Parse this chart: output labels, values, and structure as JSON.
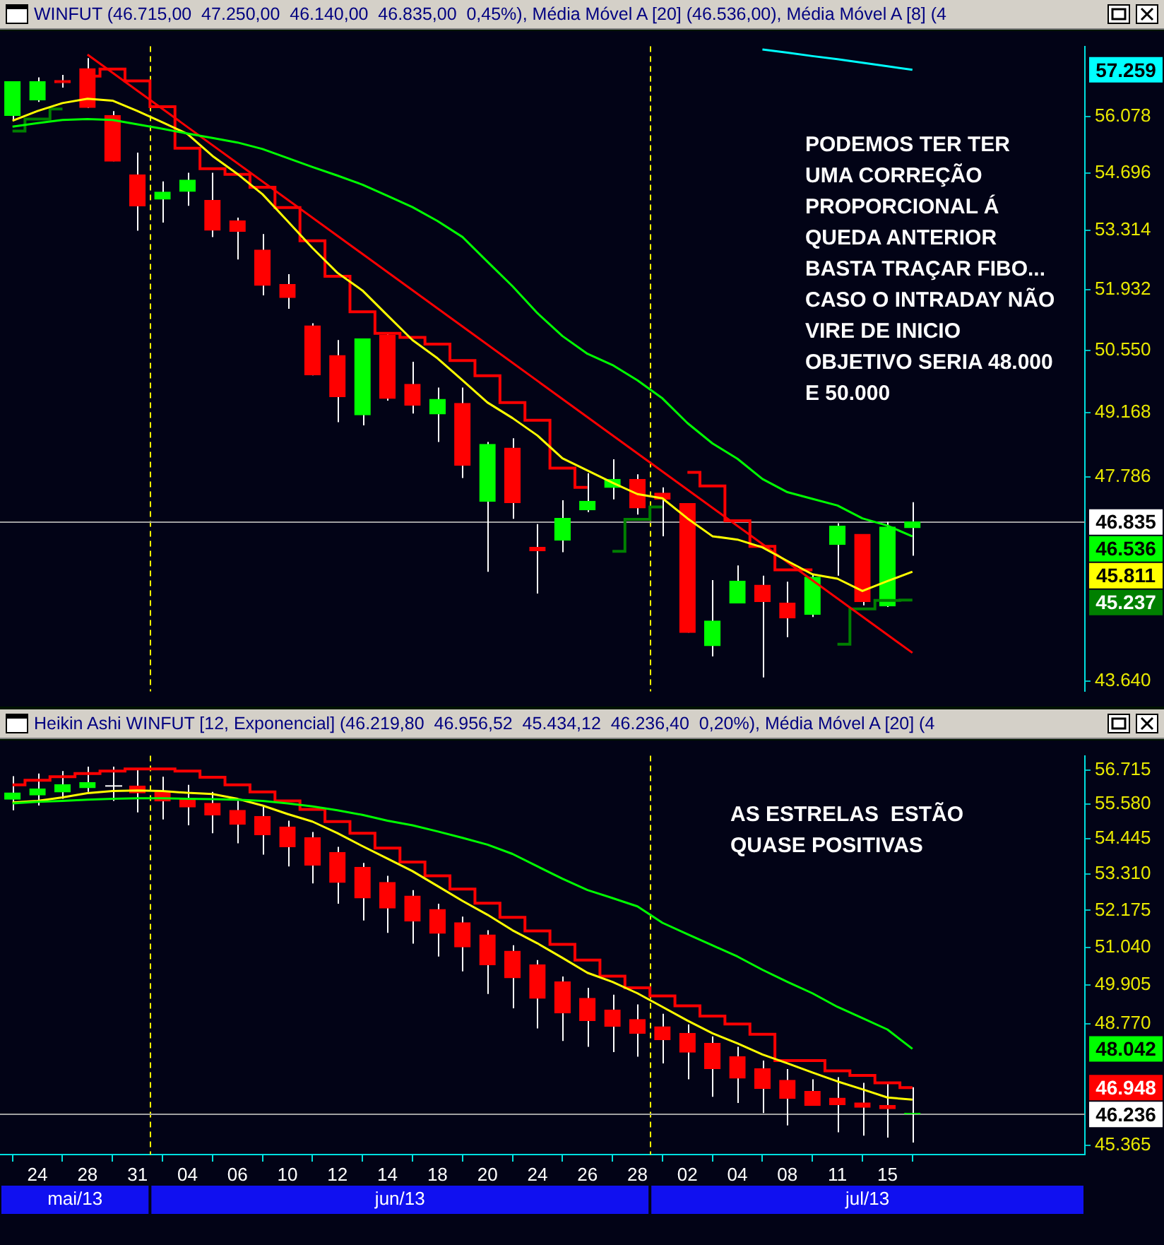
{
  "chart_data": [
    {
      "type": "candlestick",
      "title": "WINFUT (46.715,00  47.250,00  46.140,00  46.835,00  0,45%), Média Móvel A [20] (46.536,00), Média Móvel A [8] (4",
      "categories": [
        null,
        null,
        null,
        null,
        null,
        null,
        null,
        null,
        null,
        null,
        null,
        null,
        null,
        null,
        null,
        null,
        null,
        null,
        null,
        null,
        null,
        null,
        null,
        null,
        null,
        null,
        null,
        null,
        null,
        null,
        null,
        null,
        null,
        null,
        null,
        null,
        null
      ],
      "tick_labels": "y",
      "log": true,
      "ylim": [
        43440,
        57860
      ],
      "yticks": [
        {
          "value": 43640,
          "label": "43.640"
        },
        {
          "value": 47786,
          "label": "47.786"
        },
        {
          "value": 49168,
          "label": "49.168"
        },
        {
          "value": 50550,
          "label": "50.550"
        },
        {
          "value": 51932,
          "label": "51.932"
        },
        {
          "value": 53314,
          "label": "53.314"
        },
        {
          "value": 54696,
          "label": "54.696"
        },
        {
          "value": 56078,
          "label": "56.078"
        }
      ],
      "series": [
        {
          "type": "candlestick",
          "ohlc": [
            [
              56110,
              56960,
              56000,
              56960
            ],
            [
              56500,
              57070,
              56450,
              56960
            ],
            [
              56990,
              57130,
              56810,
              56930
            ],
            [
              57290,
              57560,
              56300,
              56310
            ],
            [
              56110,
              56220,
              54980,
              54980
            ],
            [
              54650,
              55190,
              53310,
              53900
            ],
            [
              54060,
              54490,
              53500,
              54230
            ],
            [
              54250,
              54700,
              53900,
              54520
            ],
            [
              54030,
              54700,
              53160,
              53320
            ],
            [
              53540,
              53620,
              52630,
              53290
            ],
            [
              52850,
              53230,
              51800,
              52030
            ],
            [
              52050,
              52290,
              51490,
              51750
            ],
            [
              51100,
              51160,
              49990,
              50000
            ],
            [
              50430,
              50780,
              48960,
              49520
            ],
            [
              49120,
              50810,
              48890,
              50810
            ],
            [
              50890,
              50930,
              49430,
              49480
            ],
            [
              49790,
              50290,
              49150,
              49330
            ],
            [
              49140,
              49720,
              48530,
              49460
            ],
            [
              49370,
              49720,
              47760,
              48030
            ],
            [
              47270,
              48530,
              45810,
              48480
            ],
            [
              48400,
              48610,
              46900,
              47240
            ],
            [
              46310,
              46790,
              45370,
              46240
            ],
            [
              46460,
              47290,
              46210,
              46910
            ],
            [
              47090,
              47860,
              47040,
              47270
            ],
            [
              47560,
              48160,
              47310,
              47730
            ],
            [
              47730,
              47840,
              46990,
              47130
            ],
            [
              47440,
              47560,
              46540,
              47310
            ],
            [
              47220,
              47220,
              44590,
              44590
            ],
            [
              44330,
              45640,
              44120,
              44820
            ],
            [
              45180,
              45940,
              45180,
              45620
            ],
            [
              45540,
              45730,
              43710,
              45210
            ],
            [
              45180,
              45610,
              44500,
              44880
            ],
            [
              44950,
              45760,
              44900,
              45700
            ],
            [
              46370,
              46810,
              45730,
              46750
            ],
            [
              46580,
              46580,
              45130,
              45210
            ],
            [
              45120,
              46840,
              45100,
              46730
            ],
            [
              46715,
              47250,
              46140,
              46835
            ]
          ],
          "colors": [
            "#00ff00",
            "#00ff00",
            "#ff0000",
            "#ff0000",
            "#ff0000",
            "#ff0000",
            "#00ff00",
            "#00ff00",
            "#ff0000",
            "#ff0000",
            "#ff0000",
            "#ff0000",
            "#ff0000",
            "#ff0000",
            "#00ff00",
            "#ff0000",
            "#ff0000",
            "#00ff00",
            "#ff0000",
            "#00ff00",
            "#ff0000",
            "#ff0000",
            "#00ff00",
            "#00ff00",
            "#00ff00",
            "#ff0000",
            "#ff0000",
            "#ff0000",
            "#00ff00",
            "#00ff00",
            "#ff0000",
            "#ff0000",
            "#00ff00",
            "#00ff00",
            "#ff0000",
            "#00ff00",
            "#00ff00"
          ]
        },
        {
          "type": "line",
          "color": "#00ff00",
          "values": [
            55830,
            55920,
            56000,
            56020,
            56000,
            55890,
            55780,
            55660,
            55550,
            55440,
            55280,
            55060,
            54840,
            54630,
            54410,
            54140,
            53870,
            53540,
            53160,
            52580,
            52010,
            51390,
            50870,
            50470,
            50220,
            49880,
            49480,
            48940,
            48500,
            48170,
            47740,
            47460,
            47320,
            47180,
            46910,
            46760,
            46536
          ]
        },
        {
          "type": "line",
          "color": "#ffff00",
          "values": [
            55980,
            56220,
            56420,
            56530,
            56480,
            56220,
            55940,
            55650,
            55110,
            54670,
            54180,
            53540,
            52900,
            52320,
            51910,
            51340,
            50780,
            50370,
            49880,
            49390,
            49050,
            48670,
            48180,
            47920,
            47660,
            47420,
            47330,
            46910,
            46540,
            46470,
            46310,
            46030,
            45760,
            45670,
            45420,
            45620,
            45811
          ]
        },
        {
          "type": "step",
          "color": "#ff0000",
          "values": [
            null,
            null,
            null,
            57100,
            57280,
            56980,
            56330,
            55300,
            54800,
            54660,
            54350,
            53860,
            53070,
            52240,
            51420,
            50930,
            50840,
            50690,
            50320,
            49980,
            49390,
            49000,
            47970,
            47560,
            null,
            null,
            null,
            47880,
            47590,
            46860,
            46330,
            45850,
            45850,
            null,
            null,
            null,
            null
          ]
        },
        {
          "type": "step",
          "color": "#008000",
          "values": [
            55720,
            56020,
            56270,
            null,
            null,
            null,
            null,
            null,
            null,
            null,
            null,
            null,
            null,
            null,
            null,
            null,
            null,
            null,
            null,
            null,
            null,
            null,
            null,
            null,
            46230,
            46890,
            47150,
            null,
            null,
            null,
            null,
            null,
            null,
            44360,
            45060,
            45230,
            45237
          ]
        },
        {
          "type": "line",
          "color": "#ff0000",
          "values": [
            null,
            null,
            null,
            57650,
            null,
            null,
            null,
            null,
            null,
            null,
            null,
            null,
            null,
            null,
            null,
            null,
            null,
            null,
            null,
            null,
            null,
            null,
            null,
            null,
            null,
            null,
            null,
            null,
            null,
            null,
            null,
            null,
            null,
            null,
            null,
            null,
            44190
          ]
        },
        {
          "type": "line",
          "color": "#00ffff",
          "values": [
            null,
            null,
            null,
            null,
            null,
            null,
            null,
            null,
            null,
            null,
            null,
            null,
            null,
            null,
            null,
            null,
            null,
            null,
            null,
            null,
            null,
            null,
            null,
            null,
            null,
            null,
            null,
            null,
            null,
            null,
            57780,
            57700,
            57610,
            57530,
            57440,
            57350,
            57259
          ]
        }
      ],
      "ref_lines": [
        {
          "axis": "y",
          "value": 46835,
          "label": "46.835",
          "color": "#a0a0a0"
        }
      ],
      "annotations": [
        "PODEMOS TER TER\nUMA CORREÇÃO\nPROPORCIONAL Á\nQUEDA ANTERIOR\nBASTA TRAÇAR FIBO...\nCASO O INTRADAY NÃO\nVIRE DE INICIO\nOBJETIVO SERIA 48.000\nE 50.000",
        "57.259",
        "46.536",
        "45.811",
        "45.237"
      ]
    },
    {
      "type": "candlestick",
      "title": "Heikin Ashi WINFUT [12, Exponencial] (46.219,80  46.956,52  45.434,12  46.236,40  0,20%), Média Móvel A [20] (4",
      "categories": [
        null,
        "24",
        null,
        "28",
        null,
        "31",
        null,
        "04",
        null,
        "06",
        null,
        "10",
        null,
        "12",
        null,
        "14",
        null,
        "18",
        null,
        "20",
        null,
        "24",
        null,
        "26",
        null,
        "28",
        null,
        "02",
        null,
        "04",
        null,
        "08",
        null,
        "11",
        null,
        "15",
        null
      ],
      "log": true,
      "ylim": [
        45110,
        57210
      ],
      "yticks": [
        {
          "value": 45365,
          "label": "45.365"
        },
        {
          "value": 48770,
          "label": "48.770"
        },
        {
          "value": 49905,
          "label": "49.905"
        },
        {
          "value": 51040,
          "label": "51.040"
        },
        {
          "value": 52175,
          "label": "52.175"
        },
        {
          "value": 53310,
          "label": "53.310"
        },
        {
          "value": 54445,
          "label": "54.445"
        },
        {
          "value": 55580,
          "label": "55.580"
        },
        {
          "value": 56715,
          "label": "56.715"
        }
      ],
      "series": [
        {
          "type": "candlestick",
          "ohlc": [
            [
              55750,
              56520,
              55380,
              55960
            ],
            [
              55890,
              56610,
              55540,
              56090
            ],
            [
              55990,
              56690,
              55760,
              56230
            ],
            [
              56130,
              56840,
              55990,
              56300
            ],
            [
              56190,
              56840,
              55690,
              56190
            ],
            [
              56190,
              56760,
              55310,
              55960
            ],
            [
              55990,
              56500,
              55080,
              55690
            ],
            [
              55760,
              56230,
              54890,
              55490
            ],
            [
              55610,
              55990,
              54630,
              55230
            ],
            [
              55380,
              55690,
              54300,
              54920
            ],
            [
              55180,
              55510,
              53940,
              54580
            ],
            [
              54830,
              55040,
              53560,
              54190
            ],
            [
              54480,
              54670,
              53020,
              53600
            ],
            [
              54010,
              54190,
              52380,
              53050
            ],
            [
              53530,
              53670,
              51860,
              52560
            ],
            [
              53050,
              53260,
              51480,
              52250
            ],
            [
              52620,
              52810,
              51150,
              51840
            ],
            [
              52200,
              52380,
              50760,
              51470
            ],
            [
              51790,
              51980,
              50310,
              51050
            ],
            [
              51420,
              51560,
              49640,
              50510
            ],
            [
              50920,
              51100,
              49220,
              50120
            ],
            [
              50510,
              50650,
              48630,
              49510
            ],
            [
              50000,
              50160,
              48270,
              49080
            ],
            [
              49510,
              49820,
              48100,
              48860
            ],
            [
              49170,
              49620,
              47950,
              48690
            ],
            [
              48890,
              49330,
              47820,
              48490
            ],
            [
              48680,
              49060,
              47630,
              48310
            ],
            [
              48490,
              48750,
              47180,
              47950
            ],
            [
              48200,
              48400,
              46690,
              47480
            ],
            [
              47820,
              48100,
              46520,
              47210
            ],
            [
              47480,
              47710,
              46240,
              46920
            ],
            [
              47150,
              47470,
              45900,
              46650
            ],
            [
              46840,
              47180,
              46450,
              46450
            ],
            [
              46650,
              47240,
              45710,
              46470
            ],
            [
              46520,
              47080,
              45620,
              46400
            ],
            [
              46450,
              47080,
              45570,
              46360
            ],
            [
              46219.8,
              46956.52,
              45434.12,
              46236.4
            ]
          ],
          "colors": [
            "#00ff00",
            "#00ff00",
            "#00ff00",
            "#00ff00",
            "#ffffff",
            "#ff0000",
            "#ff0000",
            "#ff0000",
            "#ff0000",
            "#ff0000",
            "#ff0000",
            "#ff0000",
            "#ff0000",
            "#ff0000",
            "#ff0000",
            "#ff0000",
            "#ff0000",
            "#ff0000",
            "#ff0000",
            "#ff0000",
            "#ff0000",
            "#ff0000",
            "#ff0000",
            "#ff0000",
            "#ff0000",
            "#ff0000",
            "#ff0000",
            "#ff0000",
            "#ff0000",
            "#ff0000",
            "#ff0000",
            "#ff0000",
            "#ff0000",
            "#ff0000",
            "#ff0000",
            "#ff0000",
            "#00ff00"
          ]
        },
        {
          "type": "line",
          "color": "#00ff00",
          "values": [
            55610,
            55660,
            55690,
            55730,
            55760,
            55780,
            55780,
            55760,
            55750,
            55730,
            55690,
            55610,
            55510,
            55380,
            55230,
            55040,
            54890,
            54690,
            54480,
            54260,
            53960,
            53560,
            53170,
            52810,
            52560,
            52300,
            51790,
            51440,
            51100,
            50760,
            50360,
            50000,
            49660,
            49260,
            48930,
            48600,
            48042
          ]
        },
        {
          "type": "line",
          "color": "#ffff00",
          "values": [
            55640,
            55690,
            55810,
            55950,
            56020,
            56040,
            56020,
            55960,
            55920,
            55760,
            55540,
            55260,
            55010,
            54630,
            54210,
            53810,
            53410,
            52940,
            52470,
            52040,
            51560,
            51160,
            50720,
            50270,
            50000,
            49660,
            49260,
            48860,
            48490,
            48200,
            47880,
            47630,
            47370,
            47120,
            46900,
            46670,
            46610
          ]
        },
        {
          "type": "step",
          "color": "#ff0000",
          "values": [
            56230,
            56380,
            56500,
            56610,
            56690,
            56760,
            56760,
            56690,
            56480,
            56230,
            55990,
            55690,
            55410,
            55010,
            54630,
            54150,
            53700,
            53260,
            52840,
            52400,
            51960,
            51540,
            51130,
            50650,
            50170,
            49820,
            49580,
            49290,
            48990,
            48760,
            48460,
            47710,
            47710,
            47420,
            47290,
            47080,
            46948
          ]
        }
      ],
      "ref_lines": [
        {
          "axis": "y",
          "value": 46236,
          "label": "46.236",
          "color": "#a0a0a0"
        }
      ],
      "annotations": [
        "AS ESTRELAS  ESTÃO\nQUASE POSITIVAS",
        "mai/13",
        "jun/13",
        "jul/13",
        "48.042",
        "46.948"
      ]
    }
  ]
}
